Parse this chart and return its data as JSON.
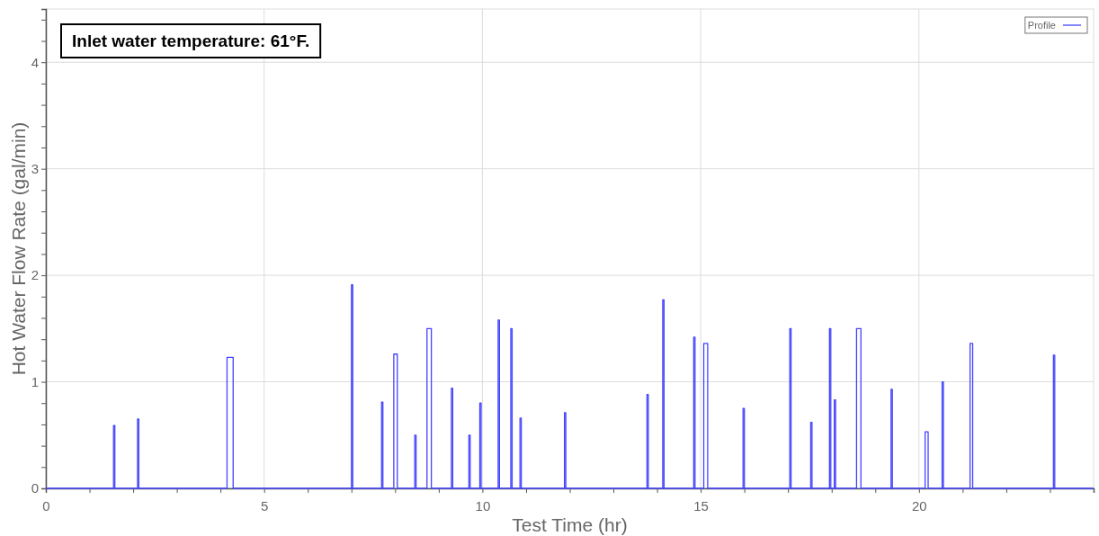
{
  "chart_data": {
    "type": "step",
    "xlabel": "Test Time (hr)",
    "ylabel": "Hot Water Flow Rate (gal/min)",
    "annotations": [
      "Inlet water temperature: 61°F."
    ],
    "xlim": [
      0,
      24
    ],
    "ylim": [
      0,
      4.5
    ],
    "xticks": [
      0,
      {
        "value": 1,
        "label": null
      },
      {
        "value": 2,
        "label": null
      },
      {
        "value": 3,
        "label": null
      },
      {
        "value": 4,
        "label": null
      },
      5,
      {
        "value": 6,
        "label": null
      },
      {
        "value": 7,
        "label": null
      },
      {
        "value": 8,
        "label": null
      },
      {
        "value": 9,
        "label": null
      },
      10,
      {
        "value": 11,
        "label": null
      },
      {
        "value": 12,
        "label": null
      },
      {
        "value": 13,
        "label": null
      },
      {
        "value": 14,
        "label": null
      },
      15,
      {
        "value": 16,
        "label": null
      },
      {
        "value": 17,
        "label": null
      },
      {
        "value": 18,
        "label": null
      },
      {
        "value": 19,
        "label": null
      },
      20,
      {
        "value": 21,
        "label": null
      },
      {
        "value": 22,
        "label": null
      },
      {
        "value": 23,
        "label": null
      },
      {
        "value": 24,
        "label": null
      }
    ],
    "yticks": [
      0,
      {
        "value": 0.2,
        "label": null
      },
      {
        "value": 0.4,
        "label": null
      },
      {
        "value": 0.6,
        "label": null
      },
      {
        "value": 0.8,
        "label": null
      },
      1,
      {
        "value": 1.2,
        "label": null
      },
      {
        "value": 1.4,
        "label": null
      },
      {
        "value": 1.6,
        "label": null
      },
      {
        "value": 1.8,
        "label": null
      },
      2,
      {
        "value": 2.2,
        "label": null
      },
      {
        "value": 2.4,
        "label": null
      },
      {
        "value": 2.6,
        "label": null
      },
      {
        "value": 2.8,
        "label": null
      },
      3,
      {
        "value": 3.2,
        "label": null
      },
      {
        "value": 3.4,
        "label": null
      },
      {
        "value": 3.6,
        "label": null
      },
      {
        "value": 3.8,
        "label": null
      },
      4,
      {
        "value": 4.2,
        "label": null
      },
      {
        "value": 4.4,
        "label": null
      }
    ],
    "grid": true,
    "legend": "top right",
    "marker": "none",
    "line_style": "solid",
    "series": [
      {
        "name": "Profile",
        "color": "#4444ff",
        "x": [
          0,
          1.55,
          1.58,
          2.1,
          2.13,
          4.15,
          4.29,
          7.0,
          7.03,
          7.69,
          7.72,
          7.97,
          8.05,
          8.45,
          8.48,
          8.73,
          8.83,
          9.29,
          9.32,
          9.69,
          9.72,
          9.94,
          9.97,
          10.36,
          10.39,
          10.65,
          10.68,
          10.86,
          10.89,
          11.88,
          11.91,
          13.77,
          13.8,
          14.13,
          14.16,
          14.84,
          14.87,
          15.07,
          15.16,
          15.97,
          16.0,
          17.04,
          17.07,
          17.52,
          17.55,
          17.95,
          17.98,
          18.06,
          18.09,
          18.57,
          18.67,
          19.36,
          19.39,
          20.14,
          20.21,
          20.53,
          20.56,
          21.17,
          21.23,
          23.08,
          23.11,
          24
        ],
        "values": [
          0,
          0.59,
          0,
          0.65,
          0,
          1.23,
          0,
          1.91,
          0,
          0.81,
          0,
          1.26,
          0,
          0.5,
          0,
          1.5,
          0,
          0.94,
          0,
          0.5,
          0,
          0.8,
          0,
          1.58,
          0,
          1.5,
          0,
          0.66,
          0,
          0.71,
          0,
          0.88,
          0,
          1.77,
          0,
          1.42,
          0,
          1.36,
          0,
          0.75,
          0,
          1.5,
          0,
          0.62,
          0,
          1.5,
          0,
          0.83,
          0,
          1.5,
          0,
          0.93,
          0,
          0.53,
          0,
          1.0,
          0,
          1.36,
          0,
          1.25,
          0,
          0
        ]
      }
    ]
  }
}
